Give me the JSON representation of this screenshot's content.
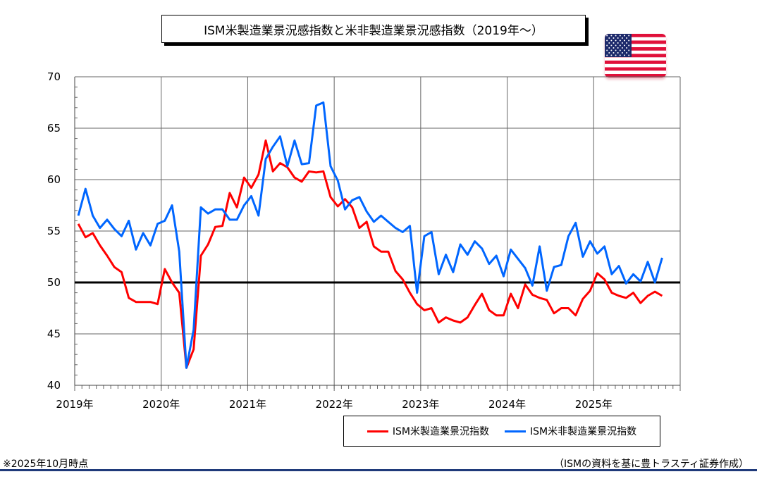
{
  "title": "ISM米製造業景況感指数と米非製造業景況感指数（2019年～）",
  "flag_icon": "us-flag-icon",
  "footnote_left": "※2025年10月時点",
  "footnote_right": "（ISMの資料を基に豊トラスティ証券作成）",
  "chart_data": {
    "type": "line",
    "title": "ISM米製造業景況感指数と米非製造業景況感指数（2019年～）",
    "xlabel": "",
    "ylabel": "",
    "ylim": [
      40,
      70
    ],
    "yticks": [
      40,
      45,
      50,
      55,
      60,
      65,
      70
    ],
    "xticks": [
      "2019年",
      "2020年",
      "2021年",
      "2022年",
      "2023年",
      "2024年",
      "2025年"
    ],
    "x_start": "2019-01",
    "x_end": "2025-10",
    "x_frequency": "monthly",
    "reference_line": 50,
    "grid": true,
    "legend_position": "bottom-right",
    "series": [
      {
        "name": "ISM米製造業景況指数",
        "color": "#ff0000",
        "values": [
          55.7,
          54.4,
          54.8,
          53.6,
          52.6,
          51.5,
          51.0,
          48.5,
          48.1,
          48.1,
          48.1,
          47.9,
          51.3,
          50.0,
          49.0,
          41.7,
          43.5,
          52.6,
          53.7,
          55.4,
          55.5,
          58.7,
          57.3,
          60.2,
          59.2,
          60.5,
          63.8,
          60.8,
          61.6,
          61.2,
          60.2,
          59.8,
          60.8,
          60.7,
          60.8,
          58.3,
          57.4,
          58.1,
          57.3,
          55.3,
          55.9,
          53.5,
          53.0,
          53.0,
          51.1,
          50.3,
          49.0,
          47.9,
          47.3,
          47.5,
          46.1,
          46.6,
          46.3,
          46.1,
          46.6,
          47.8,
          48.9,
          47.3,
          46.8,
          46.8,
          48.9,
          47.5,
          49.8,
          48.8,
          48.5,
          48.3,
          47.0,
          47.5,
          47.5,
          46.8,
          48.4,
          49.2,
          50.9,
          50.3,
          49.0,
          48.7,
          48.5,
          49.0,
          48.0,
          48.7,
          49.1,
          48.7
        ]
      },
      {
        "name": "ISM米非製造業景況指数",
        "color": "#0066ff",
        "values": [
          56.5,
          59.1,
          56.5,
          55.3,
          56.1,
          55.2,
          54.5,
          56.0,
          53.2,
          54.8,
          53.6,
          55.7,
          56.0,
          57.5,
          53.0,
          41.7,
          45.4,
          57.3,
          56.7,
          57.1,
          57.1,
          56.1,
          56.1,
          57.5,
          58.4,
          56.5,
          62.0,
          63.2,
          64.2,
          61.3,
          63.8,
          61.5,
          61.6,
          67.2,
          67.5,
          61.3,
          59.9,
          57.1,
          58.0,
          58.3,
          56.9,
          55.9,
          56.5,
          55.9,
          55.3,
          54.9,
          55.5,
          49.0,
          54.5,
          54.9,
          50.8,
          52.7,
          51.0,
          53.7,
          52.7,
          54.0,
          53.3,
          51.8,
          52.6,
          50.6,
          53.2,
          52.3,
          51.4,
          49.7,
          53.5,
          49.2,
          51.5,
          51.7,
          54.5,
          55.8,
          52.5,
          54.0,
          52.8,
          53.5,
          50.8,
          51.6,
          49.9,
          50.8,
          50.1,
          52.0,
          50.0,
          52.4
        ]
      }
    ]
  }
}
